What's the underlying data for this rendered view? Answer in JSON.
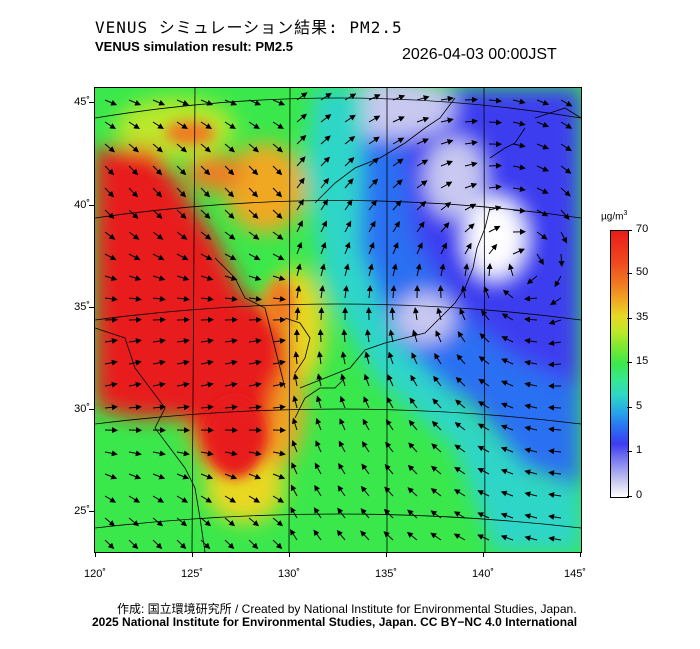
{
  "header": {
    "title_jp": "VENUS シミュレーション結果: PM2.5",
    "title_en": "VENUS simulation result: PM2.5",
    "timestamp": "2026-04-03 00:00JST"
  },
  "map": {
    "lat_labels": [
      "45˚",
      "40˚",
      "35˚",
      "30˚",
      "25˚"
    ],
    "lon_labels": [
      "120˚",
      "125˚",
      "130˚",
      "135˚",
      "140˚",
      "145˚"
    ],
    "lat_range": [
      23,
      46
    ],
    "lon_range": [
      120,
      145
    ]
  },
  "colorbar": {
    "unit_prefix": "µg/m",
    "unit_exp": "3",
    "labels": [
      "70",
      "50",
      "35",
      "15",
      "5",
      "1",
      "0"
    ],
    "colors": {
      "low": "#ffffff",
      "blue": "#3c3cf0",
      "cyan": "#2ed6c8",
      "green": "#3ae84c",
      "yellow": "#e8d824",
      "orange": "#f07a20",
      "red": "#e81c1a"
    }
  },
  "footer": {
    "credit_line1": "作成: 国立環境研究所 / Created by National Institute for Environmental Studies, Japan.",
    "credit_line2": "2025 National Institute for Environmental Studies, Japan. CC BY−NC 4.0 International"
  }
}
